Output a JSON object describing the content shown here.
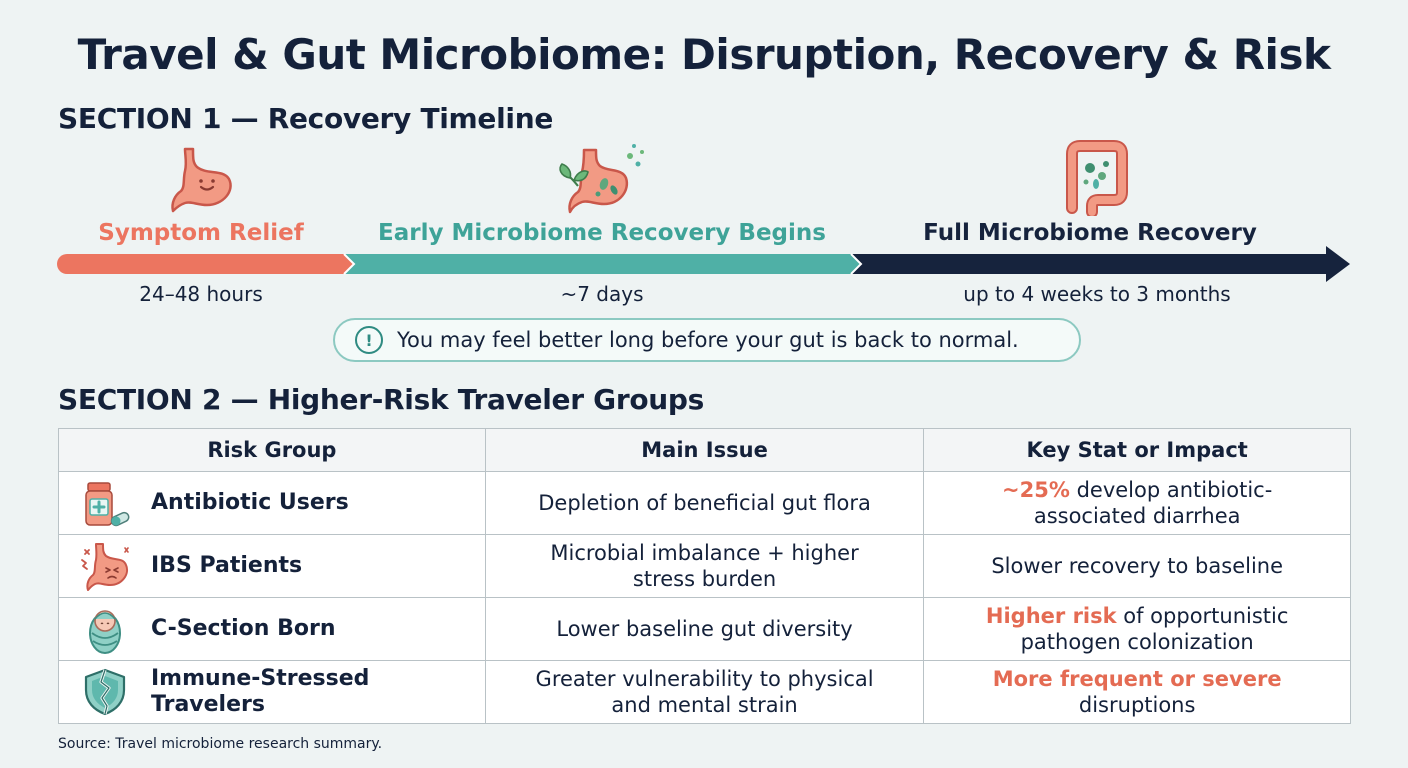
{
  "title": "Travel & Gut Microbiome: Disruption, Recovery & Risk",
  "section1": {
    "heading": "SECTION 1 — Recovery Timeline",
    "stages": [
      {
        "label": "Symptom Relief",
        "time": "24–48 hours",
        "color": "#ec7560",
        "icon": "stomach-icon"
      },
      {
        "label": "Early Microbiome Recovery Begins",
        "time": "~7 days",
        "color": "#4fb0a6",
        "icon": "stomach-sprout-icon"
      },
      {
        "label": "Full Microbiome Recovery",
        "time": "up to 4 weeks to 3 months",
        "color": "#16233d",
        "icon": "intestine-icon"
      }
    ],
    "note": "You may feel better long before your gut is back to normal.",
    "note_icon": "exclamation-circle-icon"
  },
  "section2": {
    "heading": "SECTION 2 — Higher-Risk Traveler Groups",
    "columns": [
      "Risk Group",
      "Main Issue",
      "Key Stat or Impact"
    ],
    "rows": [
      {
        "icon": "medicine-bottle-icon",
        "group": "Antibiotic Users",
        "issue": "Depletion of beneficial gut flora",
        "stat_highlight": "~25%",
        "stat_rest": " develop antibiotic-associated diarrhea"
      },
      {
        "icon": "stressed-stomach-icon",
        "group": "IBS Patients",
        "issue": "Microbial imbalance + higher stress burden",
        "stat_highlight": "",
        "stat_rest": "Slower recovery to baseline"
      },
      {
        "icon": "swaddled-baby-icon",
        "group": "C-Section Born",
        "issue": "Lower baseline gut diversity",
        "stat_highlight": "Higher risk",
        "stat_rest": " of opportunistic pathogen colonization"
      },
      {
        "icon": "cracked-shield-icon",
        "group": "Immune-Stressed Travelers",
        "issue": "Greater vulnerability to physical and mental strain",
        "stat_highlight": "More frequent or severe",
        "stat_rest": " disruptions"
      }
    ]
  },
  "source": "Source: Travel microbiome research summary.",
  "colors": {
    "background": "#eef3f3",
    "text": "#14213a",
    "coral": "#ec7560",
    "teal": "#4fb0a6",
    "navy": "#16233d",
    "highlight": "#e46b53"
  }
}
